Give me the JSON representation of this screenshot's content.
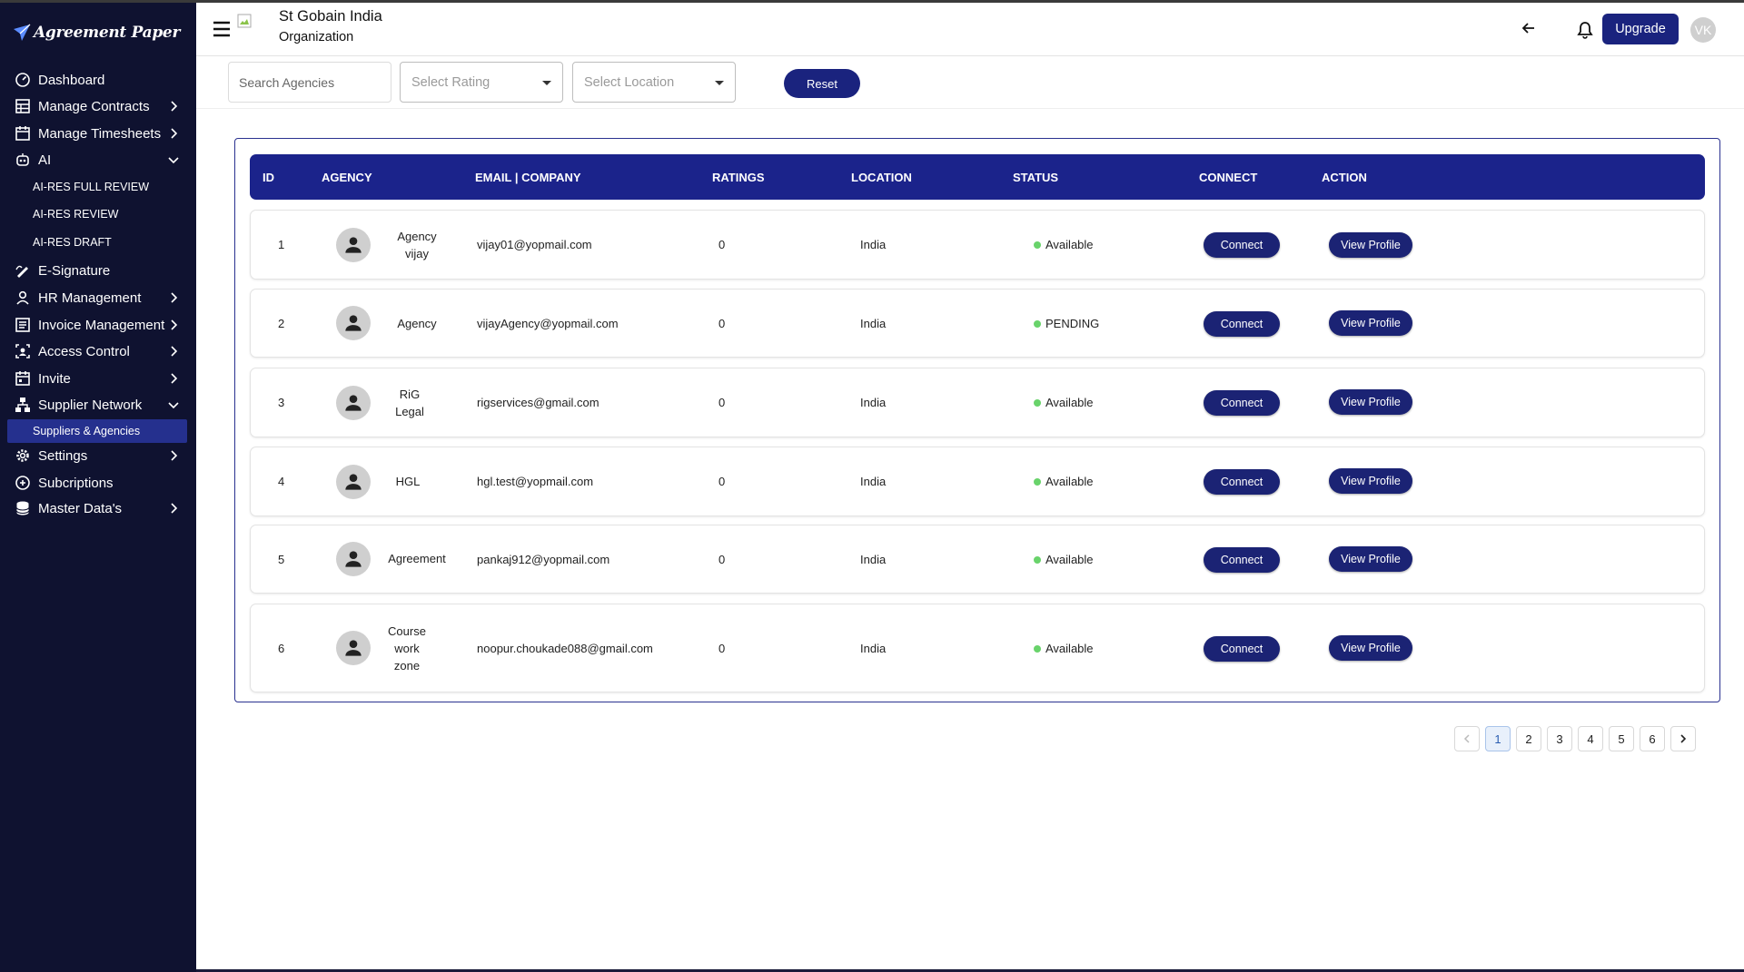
{
  "app": {
    "logo_text": "Agreement Paper"
  },
  "sidebar": {
    "items": [
      {
        "label": "Dashboard",
        "icon": "gauge-icon"
      },
      {
        "label": "Manage Contracts",
        "icon": "table-icon"
      },
      {
        "label": "Manage Timesheets",
        "icon": "calendar-icon"
      },
      {
        "label": "AI",
        "icon": "robot-icon"
      },
      {
        "label": "AI-RES FULL REVIEW"
      },
      {
        "label": "AI-RES REVIEW"
      },
      {
        "label": "AI-RES DRAFT"
      },
      {
        "label": "E-Signature",
        "icon": "signature-icon"
      },
      {
        "label": "HR Management",
        "icon": "person-icon"
      },
      {
        "label": "Invoice Management",
        "icon": "invoice-icon"
      },
      {
        "label": "Access Control",
        "icon": "access-icon"
      },
      {
        "label": "Invite",
        "icon": "calendar-invite-icon"
      },
      {
        "label": "Supplier Network",
        "icon": "network-icon"
      },
      {
        "label": "Suppliers & Agencies"
      },
      {
        "label": "Settings",
        "icon": "gear-icon"
      },
      {
        "label": "Subcriptions",
        "icon": "subscription-icon"
      },
      {
        "label": "Master Data's",
        "icon": "database-icon"
      }
    ]
  },
  "header": {
    "org_name": "St Gobain India",
    "org_type": "Organization",
    "upgrade_label": "Upgrade",
    "avatar_initials": "VK"
  },
  "filters": {
    "search_placeholder": "Search Agencies",
    "rating_placeholder": "Select Rating",
    "location_placeholder": "Select Location",
    "reset_label": "Reset"
  },
  "table": {
    "columns": [
      "ID",
      "AGENCY",
      "EMAIL | COMPANY",
      "RATINGS",
      "LOCATION",
      "STATUS",
      "CONNECT",
      "ACTION"
    ],
    "rows": [
      {
        "id": "1",
        "agency_lines": [
          "Agency",
          "vijay"
        ],
        "email": "vijay01@yopmail.com",
        "ratings": "0",
        "location": "India",
        "status": "Available",
        "connect": "Connect",
        "action": "View Profile"
      },
      {
        "id": "2",
        "agency_lines": [
          "Agency"
        ],
        "email": "vijayAgency@yopmail.com",
        "ratings": "0",
        "location": "India",
        "status": "PENDING",
        "connect": "Connect",
        "action": "View Profile"
      },
      {
        "id": "3",
        "agency_lines": [
          "RiG",
          "Legal"
        ],
        "email": "rigservices@gmail.com",
        "ratings": "0",
        "location": "India",
        "status": "Available",
        "connect": "Connect",
        "action": "View Profile"
      },
      {
        "id": "4",
        "agency_lines": [
          "HGL"
        ],
        "email": "hgl.test@yopmail.com",
        "ratings": "0",
        "location": "India",
        "status": "Available",
        "connect": "Connect",
        "action": "View Profile"
      },
      {
        "id": "5",
        "agency_lines": [
          "Agreement"
        ],
        "email": "pankaj912@yopmail.com",
        "ratings": "0",
        "location": "India",
        "status": "Available",
        "connect": "Connect",
        "action": "View Profile"
      },
      {
        "id": "6",
        "agency_lines": [
          "Course",
          "work",
          "zone"
        ],
        "email": "noopur.choukade088@gmail.com",
        "ratings": "0",
        "location": "India",
        "status": "Available",
        "connect": "Connect",
        "action": "View Profile"
      }
    ]
  },
  "pagination": {
    "pages": [
      "1",
      "2",
      "3",
      "4",
      "5",
      "6"
    ],
    "current": "1"
  },
  "colors": {
    "primary": "#1b238b",
    "sidebar_bg": "#0f1230",
    "status_dot": "#69d36b",
    "active_sub_bg": "#25308e"
  }
}
